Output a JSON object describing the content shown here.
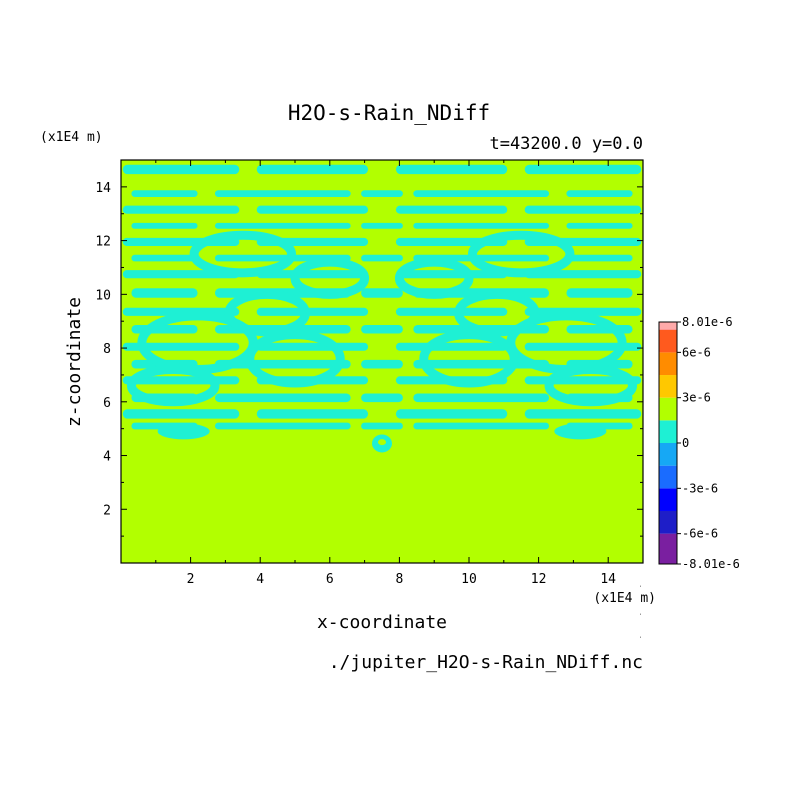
{
  "chart_data": {
    "type": "heatmap",
    "title": "H2O-s-Rain_NDiff",
    "subtitle": "t=43200.0 y=0.0",
    "xlabel": "x-coordinate",
    "ylabel": "z-coordinate",
    "x_unit": "(x1E4 m)",
    "y_unit": "(x1E4 m)",
    "xlim": [
      0,
      15
    ],
    "ylim": [
      0,
      15
    ],
    "x_ticks": [
      "2",
      "4",
      "6",
      "8",
      "10",
      "12",
      "14"
    ],
    "y_ticks": [
      "2",
      "4",
      "6",
      "8",
      "10",
      "12",
      "14"
    ],
    "x_tick_values": [
      2,
      4,
      6,
      8,
      10,
      12,
      14
    ],
    "y_tick_values": [
      2,
      4,
      6,
      8,
      10,
      12,
      14
    ],
    "colorbar": {
      "levels": [
        -8.01e-06,
        -6e-06,
        -4.5e-06,
        -3e-06,
        -1.5e-06,
        0,
        1.5e-06,
        3e-06,
        4.5e-06,
        6e-06,
        7.5e-06,
        8.01e-06
      ],
      "colors": [
        "#7a1fa0",
        "#1e1ec8",
        "#0000ff",
        "#1a6cff",
        "#16a8f5",
        "#1ef0d4",
        "#b2ff00",
        "#ffc800",
        "#ff8c00",
        "#ff5a1e",
        "#ff1e1e",
        "#ffaaaa"
      ],
      "tick_labels": [
        "8.01e-6",
        "6e-6",
        "3e-6",
        "0",
        "-3e-6",
        "-6e-6",
        "-8.01e-6"
      ],
      "tick_values": [
        8.01e-06,
        6e-06,
        3e-06,
        0,
        -3e-06,
        -6e-06,
        -8.01e-06
      ]
    },
    "field_summary": {
      "z_below_5": "0 (uniform, green)",
      "z_5_to_15": "banded labyrinth of 0 and slightly negative (-1.5e-6 to 0, cyan) values, symmetric about x=7.5",
      "colors": {
        "zero": "#b2ff00",
        "slightly_negative": "#1ef0d4"
      }
    },
    "footer": "./jupiter_H2O-s-Rain_NDiff.nc"
  }
}
